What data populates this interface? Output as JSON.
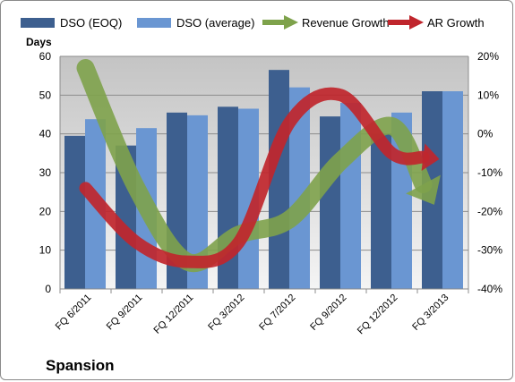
{
  "company": "Spansion",
  "chart_data": {
    "type": "bar",
    "ylabel": "Days",
    "ylim": [
      0,
      60
    ],
    "yticks": [
      0,
      10,
      20,
      30,
      40,
      50,
      60
    ],
    "y2lim": [
      -40,
      20
    ],
    "y2ticks": [
      "20%",
      "10%",
      "0%",
      "-10%",
      "-20%",
      "-30%",
      "-40%"
    ],
    "categories": [
      "FQ 6/2011",
      "FQ 9/2011",
      "FQ 12/2011",
      "FQ 3/2012",
      "FQ 7/2012",
      "FQ 9/2012",
      "FQ 12/2012",
      "FQ 3/2013"
    ],
    "legend_position": "top",
    "series": [
      {
        "name": "DSO (EOQ)",
        "kind": "bar",
        "color": "#3d5f8f",
        "values": [
          39.5,
          37,
          45.5,
          47,
          56.5,
          44.5,
          40,
          51
        ]
      },
      {
        "name": "DSO (average)",
        "kind": "bar",
        "color": "#6a96d2",
        "values": [
          43.8,
          41.5,
          44.8,
          46.5,
          52,
          48,
          45.5,
          51
        ]
      },
      {
        "name": "Revenue Growth",
        "kind": "arrow",
        "axis": "secondary",
        "color": "#7ea24b",
        "values": [
          17,
          -14,
          -33,
          -26,
          -22,
          -7,
          2,
          -13
        ]
      },
      {
        "name": "AR Growth",
        "kind": "arrow",
        "axis": "secondary",
        "color": "#c0262d",
        "values": [
          -14,
          -28,
          -33,
          -28,
          3,
          10,
          -5,
          -6
        ]
      }
    ]
  }
}
